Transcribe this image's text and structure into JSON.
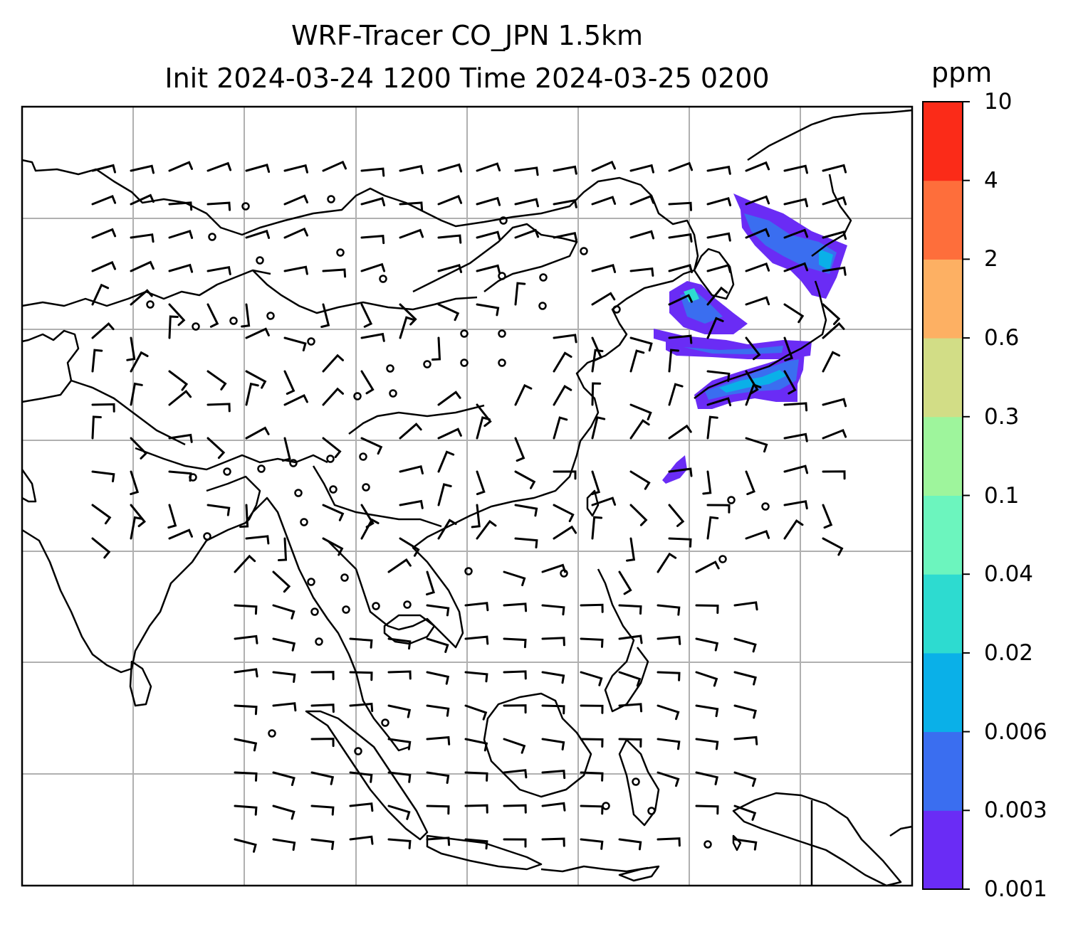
{
  "title_line1": "WRF-Tracer CO_JPN 1.5km",
  "title_line2": "Init 2024-03-24 1200 Time 2024-03-25 0200",
  "colorbar": {
    "unit": "ppm",
    "levels": [
      "0.001",
      "0.003",
      "0.006",
      "0.02",
      "0.04",
      "0.1",
      "0.3",
      "0.6",
      "2",
      "4",
      "10"
    ],
    "colors": [
      "#6a2cf5",
      "#3a6ef0",
      "#0ab0e8",
      "#2ddbd0",
      "#6cf5be",
      "#9ef59c",
      "#d2dd86",
      "#fdb063",
      "#fe6e3b",
      "#fb2b18"
    ]
  },
  "plume_colors": {
    "low": "#6a2cf5",
    "mid": "#3a6ef0",
    "high": "#0ab0e8",
    "peak": "#2ddbd0"
  }
}
